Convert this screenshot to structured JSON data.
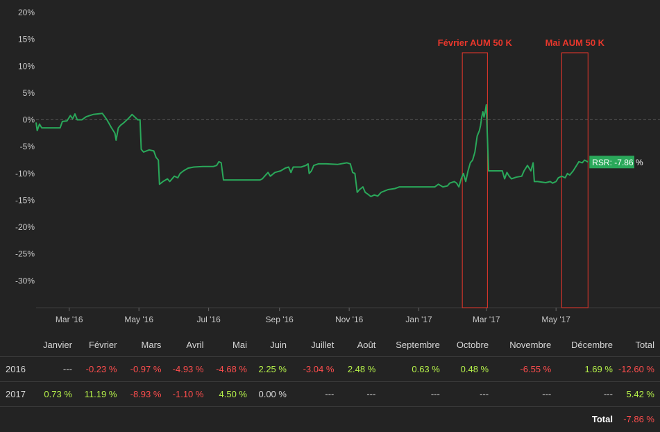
{
  "colors": {
    "background": "#232323",
    "line": "#2aa85a",
    "annotation": "#e8372c",
    "positive": "#b6f24a",
    "negative": "#ff4d4d",
    "rsr_label_bg": "#2aa85a"
  },
  "chart_data": {
    "type": "line",
    "title": "",
    "xlabel": "",
    "ylabel": "",
    "ylim": [
      -35,
      20
    ],
    "y_ticks": [
      "20%",
      "15%",
      "10%",
      "5%",
      "0%",
      "-5%",
      "-10%",
      "-15%",
      "-20%",
      "-25%",
      "-30%"
    ],
    "y_tick_values": [
      20,
      15,
      10,
      5,
      0,
      -5,
      -10,
      -15,
      -20,
      -25,
      -30
    ],
    "x_range": [
      "2016-02-01",
      "2017-07-31"
    ],
    "x_ticks": [
      {
        "date": "2016-03-01",
        "label": "Mar '16"
      },
      {
        "date": "2016-05-01",
        "label": "May '16"
      },
      {
        "date": "2016-07-01",
        "label": "Jul '16"
      },
      {
        "date": "2016-09-01",
        "label": "Sep '16"
      },
      {
        "date": "2016-11-01",
        "label": "Nov '16"
      },
      {
        "date": "2017-01-01",
        "label": "Jan '17"
      },
      {
        "date": "2017-03-01",
        "label": "Mar '17"
      },
      {
        "date": "2017-05-01",
        "label": "May '17"
      }
    ],
    "zero_line": true,
    "grid": false,
    "series": [
      {
        "name": "RSR",
        "points": [
          [
            "2016-02-01",
            -0.5
          ],
          [
            "2016-02-02",
            -2.0
          ],
          [
            "2016-02-04",
            -0.8
          ],
          [
            "2016-02-06",
            -1.5
          ],
          [
            "2016-02-15",
            -1.5
          ],
          [
            "2016-02-22",
            -1.5
          ],
          [
            "2016-02-24",
            -0.3
          ],
          [
            "2016-02-28",
            -0.2
          ],
          [
            "2016-03-02",
            0.8
          ],
          [
            "2016-03-04",
            0.2
          ],
          [
            "2016-03-06",
            1.1
          ],
          [
            "2016-03-08",
            0.0
          ],
          [
            "2016-03-12",
            0.0
          ],
          [
            "2016-03-16",
            0.6
          ],
          [
            "2016-03-22",
            1.0
          ],
          [
            "2016-03-30",
            1.2
          ],
          [
            "2016-04-03",
            0.0
          ],
          [
            "2016-04-07",
            -1.5
          ],
          [
            "2016-04-10",
            -2.5
          ],
          [
            "2016-04-11",
            -3.8
          ],
          [
            "2016-04-13",
            -1.5
          ],
          [
            "2016-04-15",
            -1.0
          ],
          [
            "2016-04-18",
            -0.5
          ],
          [
            "2016-04-22",
            0.3
          ],
          [
            "2016-04-25",
            1.0
          ],
          [
            "2016-04-30",
            0.0
          ],
          [
            "2016-05-02",
            0.0
          ],
          [
            "2016-05-03",
            -5.5
          ],
          [
            "2016-05-05",
            -6.0
          ],
          [
            "2016-05-10",
            -5.6
          ],
          [
            "2016-05-14",
            -5.8
          ],
          [
            "2016-05-16",
            -7.0
          ],
          [
            "2016-05-18",
            -7.5
          ],
          [
            "2016-05-19",
            -12.0
          ],
          [
            "2016-05-22",
            -11.5
          ],
          [
            "2016-05-26",
            -11.0
          ],
          [
            "2016-05-28",
            -11.5
          ],
          [
            "2016-06-01",
            -10.5
          ],
          [
            "2016-06-04",
            -10.8
          ],
          [
            "2016-06-06",
            -10.0
          ],
          [
            "2016-06-09",
            -9.5
          ],
          [
            "2016-06-13",
            -9.0
          ],
          [
            "2016-06-18",
            -8.8
          ],
          [
            "2016-06-26",
            -8.7
          ],
          [
            "2016-07-05",
            -8.7
          ],
          [
            "2016-07-08",
            -8.5
          ],
          [
            "2016-07-10",
            -7.8
          ],
          [
            "2016-07-12",
            -8.0
          ],
          [
            "2016-07-14",
            -11.2
          ],
          [
            "2016-07-25",
            -11.2
          ],
          [
            "2016-08-08",
            -11.2
          ],
          [
            "2016-08-15",
            -11.2
          ],
          [
            "2016-08-17",
            -11.0
          ],
          [
            "2016-08-19",
            -10.5
          ],
          [
            "2016-08-22",
            -9.8
          ],
          [
            "2016-08-24",
            -10.5
          ],
          [
            "2016-08-28",
            -9.8
          ],
          [
            "2016-09-02",
            -9.5
          ],
          [
            "2016-09-06",
            -9.0
          ],
          [
            "2016-09-09",
            -8.8
          ],
          [
            "2016-09-11",
            -9.8
          ],
          [
            "2016-09-13",
            -8.8
          ],
          [
            "2016-09-20",
            -8.8
          ],
          [
            "2016-09-24",
            -8.5
          ],
          [
            "2016-09-26",
            -8.2
          ],
          [
            "2016-09-27",
            -10.0
          ],
          [
            "2016-09-29",
            -9.5
          ],
          [
            "2016-10-01",
            -8.5
          ],
          [
            "2016-10-05",
            -8.2
          ],
          [
            "2016-10-12",
            -8.2
          ],
          [
            "2016-10-22",
            -8.3
          ],
          [
            "2016-10-30",
            -8.0
          ],
          [
            "2016-11-02",
            -8.2
          ],
          [
            "2016-11-04",
            -9.8
          ],
          [
            "2016-11-06",
            -10.0
          ],
          [
            "2016-11-08",
            -13.5
          ],
          [
            "2016-11-10",
            -13.0
          ],
          [
            "2016-11-13",
            -12.5
          ],
          [
            "2016-11-15",
            -13.5
          ],
          [
            "2016-11-17",
            -13.8
          ],
          [
            "2016-11-20",
            -14.3
          ],
          [
            "2016-11-23",
            -14.0
          ],
          [
            "2016-11-26",
            -14.2
          ],
          [
            "2016-11-29",
            -13.5
          ],
          [
            "2016-12-05",
            -13.0
          ],
          [
            "2016-12-11",
            -12.8
          ],
          [
            "2016-12-15",
            -12.5
          ],
          [
            "2016-12-30",
            -12.5
          ],
          [
            "2017-01-15",
            -12.5
          ],
          [
            "2017-01-18",
            -12.0
          ],
          [
            "2017-01-22",
            -12.5
          ],
          [
            "2017-01-26",
            -12.3
          ],
          [
            "2017-01-28",
            -11.8
          ],
          [
            "2017-02-01",
            -11.5
          ],
          [
            "2017-02-03",
            -11.8
          ],
          [
            "2017-02-05",
            -12.5
          ],
          [
            "2017-02-07",
            -11.0
          ],
          [
            "2017-02-09",
            -10.0
          ],
          [
            "2017-02-11",
            -11.5
          ],
          [
            "2017-02-13",
            -9.5
          ],
          [
            "2017-02-15",
            -8.0
          ],
          [
            "2017-02-17",
            -7.5
          ],
          [
            "2017-02-19",
            -6.0
          ],
          [
            "2017-02-21",
            -3.0
          ],
          [
            "2017-02-23",
            -2.0
          ],
          [
            "2017-02-24",
            -1.0
          ],
          [
            "2017-02-25",
            0.5
          ],
          [
            "2017-02-26",
            1.5
          ],
          [
            "2017-02-27",
            0.5
          ],
          [
            "2017-02-28",
            1.5
          ],
          [
            "2017-03-01",
            2.8
          ],
          [
            "2017-03-03",
            -9.5
          ],
          [
            "2017-03-08",
            -9.5
          ],
          [
            "2017-03-15",
            -9.5
          ],
          [
            "2017-03-17",
            -11.0
          ],
          [
            "2017-03-19",
            -9.8
          ],
          [
            "2017-03-21",
            -10.5
          ],
          [
            "2017-03-23",
            -11.0
          ],
          [
            "2017-03-27",
            -10.7
          ],
          [
            "2017-04-01",
            -10.5
          ],
          [
            "2017-04-03",
            -9.5
          ],
          [
            "2017-04-06",
            -8.5
          ],
          [
            "2017-04-09",
            -9.5
          ],
          [
            "2017-04-11",
            -8.0
          ],
          [
            "2017-04-12",
            -11.5
          ],
          [
            "2017-04-15",
            -11.5
          ],
          [
            "2017-04-22",
            -11.7
          ],
          [
            "2017-04-26",
            -11.5
          ],
          [
            "2017-04-28",
            -11.8
          ],
          [
            "2017-05-01",
            -11.5
          ],
          [
            "2017-05-03",
            -10.8
          ],
          [
            "2017-05-06",
            -10.5
          ],
          [
            "2017-05-09",
            -10.8
          ],
          [
            "2017-05-11",
            -10.0
          ],
          [
            "2017-05-13",
            -10.3
          ],
          [
            "2017-05-16",
            -9.5
          ],
          [
            "2017-05-19",
            -8.5
          ],
          [
            "2017-05-21",
            -7.8
          ],
          [
            "2017-05-24",
            -8.0
          ],
          [
            "2017-05-26",
            -7.5
          ],
          [
            "2017-05-29",
            -7.86
          ]
        ]
      }
    ],
    "annotations": [
      {
        "label": "Février AUM 50 K",
        "x_start": "2017-02-08",
        "x_end": "2017-03-02",
        "y_top": 12.5,
        "y_bottom": -35
      },
      {
        "label": "Mai AUM 50 K",
        "x_start": "2017-05-06",
        "x_end": "2017-05-29",
        "y_top": 12.5,
        "y_bottom": -35
      }
    ],
    "end_label": "RSR: -7.86 %"
  },
  "table": {
    "headers": [
      "",
      "Janvier",
      "Février",
      "Mars",
      "Avril",
      "Mai",
      "Juin",
      "Juillet",
      "Août",
      "Septembre",
      "Octobre",
      "Novembre",
      "Décembre",
      "Total"
    ],
    "rows": [
      {
        "year": "2016",
        "cells": [
          "---",
          "-0.23 %",
          "-0.97 %",
          "-4.93 %",
          "-4.68 %",
          "2.25 %",
          "-3.04 %",
          "2.48 %",
          "0.63 %",
          "0.48 %",
          "-6.55 %",
          "1.69 %",
          "-12.60 %"
        ]
      },
      {
        "year": "2017",
        "cells": [
          "0.73 %",
          "11.19 %",
          "-8.93 %",
          "-1.10 %",
          "4.50 %",
          "0.00 %",
          "---",
          "---",
          "---",
          "---",
          "---",
          "---",
          "5.42 %"
        ]
      }
    ],
    "total_label": "Total",
    "total_value": "-7.86 %"
  }
}
